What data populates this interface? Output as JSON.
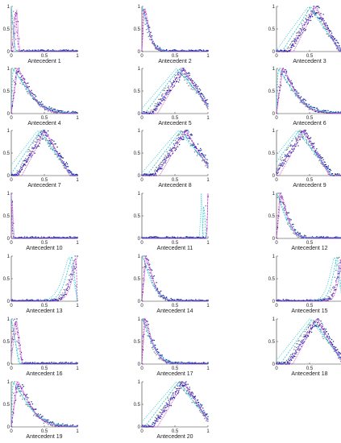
{
  "figure": {
    "colors": {
      "cyan": "#22c6d6",
      "magenta": "#c03ac8",
      "navy": "#1a1a8c",
      "blue": "#2050e0",
      "gray": "#7a7a7a",
      "axis": "#333333"
    },
    "x_ticks": [
      "0",
      "0.5",
      "1"
    ],
    "y_ticks": [
      "0",
      "0.5",
      "1"
    ]
  },
  "chart_data": [
    {
      "type": "line",
      "title": "Antecedent 1",
      "xlim": [
        0,
        1
      ],
      "ylim": [
        0,
        1
      ],
      "ylabel": "",
      "xlabel": "Antecedent 1",
      "shape": "spike",
      "peak": 0.06,
      "width": 0.05
    },
    {
      "type": "line",
      "title": "Antecedent 2",
      "xlim": [
        0,
        1
      ],
      "ylim": [
        0,
        1
      ],
      "xlabel": "Antecedent 2",
      "shape": "decay",
      "peak": 0.02,
      "width": 0.18
    },
    {
      "type": "line",
      "title": "Antecedent 3",
      "xlim": [
        0,
        1
      ],
      "ylim": [
        0,
        1
      ],
      "xlabel": "Antecedent 3",
      "shape": "tri",
      "peak": 0.58,
      "width": 0.38
    },
    {
      "type": "line",
      "title": "Antecedent 4",
      "xlim": [
        0,
        1
      ],
      "ylim": [
        0,
        1
      ],
      "xlabel": "Antecedent 4",
      "shape": "decay",
      "peak": 0.08,
      "width": 0.45
    },
    {
      "type": "line",
      "title": "Antecedent 5",
      "xlim": [
        0,
        1
      ],
      "ylim": [
        0,
        1
      ],
      "xlabel": "Antecedent 5",
      "shape": "broad",
      "peak": 0.62,
      "width": 0.45
    },
    {
      "type": "line",
      "title": "Antecedent 6",
      "xlim": [
        0,
        1
      ],
      "ylim": [
        0,
        1
      ],
      "xlabel": "Antecedent 6",
      "shape": "decay",
      "peak": 0.08,
      "width": 0.45
    },
    {
      "type": "line",
      "title": "Antecedent 7",
      "xlim": [
        0,
        1
      ],
      "ylim": [
        0,
        1
      ],
      "xlabel": "Antecedent 7",
      "shape": "broad",
      "peak": 0.5,
      "width": 0.4
    },
    {
      "type": "line",
      "title": "Antecedent 8",
      "xlim": [
        0,
        1
      ],
      "ylim": [
        0,
        1
      ],
      "xlabel": "Antecedent 8",
      "shape": "tri",
      "peak": 0.65,
      "width": 0.45
    },
    {
      "type": "line",
      "title": "Antecedent 9",
      "xlim": [
        0,
        1
      ],
      "ylim": [
        0,
        1
      ],
      "xlabel": "Antecedent 9",
      "shape": "broad",
      "peak": 0.4,
      "width": 0.42
    },
    {
      "type": "line",
      "title": "Antecedent 10",
      "xlim": [
        0,
        1
      ],
      "ylim": [
        0,
        1
      ],
      "xlabel": "Antecedent 10",
      "shape": "spike",
      "peak": 0.0,
      "width": 0.02
    },
    {
      "type": "line",
      "title": "Antecedent 11",
      "xlim": [
        0,
        1
      ],
      "ylim": [
        0,
        1
      ],
      "xlabel": "Antecedent 11",
      "shape": "spike",
      "peak": 1.0,
      "width": 0.02
    },
    {
      "type": "line",
      "title": "Antecedent 12",
      "xlim": [
        0,
        1
      ],
      "ylim": [
        0,
        1
      ],
      "xlabel": "Antecedent 12",
      "shape": "decay",
      "peak": 0.05,
      "width": 0.25
    },
    {
      "type": "line",
      "title": "Antecedent 13",
      "xlim": [
        0,
        1
      ],
      "ylim": [
        0,
        1
      ],
      "xlabel": "Antecedent 13",
      "shape": "rise",
      "peak": 0.98,
      "width": 0.2
    },
    {
      "type": "line",
      "title": "Antecedent 14",
      "xlim": [
        0,
        1
      ],
      "ylim": [
        0,
        1
      ],
      "xlabel": "Antecedent 14",
      "shape": "decay",
      "peak": 0.05,
      "width": 0.25
    },
    {
      "type": "line",
      "title": "Antecedent 15",
      "xlim": [
        0,
        1
      ],
      "ylim": [
        0,
        1
      ],
      "xlabel": "Antecedent 15",
      "shape": "rise",
      "peak": 0.98,
      "width": 0.15
    },
    {
      "type": "line",
      "title": "Antecedent 16",
      "xlim": [
        0,
        1
      ],
      "ylim": [
        0,
        1
      ],
      "xlabel": "Antecedent 16",
      "shape": "spike",
      "peak": 0.06,
      "width": 0.1
    },
    {
      "type": "line",
      "title": "Antecedent 17",
      "xlim": [
        0,
        1
      ],
      "ylim": [
        0,
        1
      ],
      "xlabel": "Antecedent 17",
      "shape": "decay",
      "peak": 0.03,
      "width": 0.28
    },
    {
      "type": "line",
      "title": "Antecedent 18",
      "xlim": [
        0,
        1
      ],
      "ylim": [
        0,
        1
      ],
      "xlabel": "Antecedent 18",
      "shape": "tri",
      "peak": 0.6,
      "width": 0.42
    },
    {
      "type": "line",
      "title": "Antecedent 19",
      "xlim": [
        0,
        1
      ],
      "ylim": [
        0,
        1
      ],
      "xlabel": "Antecedent 19",
      "shape": "decay",
      "peak": 0.08,
      "width": 0.45
    },
    {
      "type": "line",
      "title": "Antecedent 20",
      "xlim": [
        0,
        1
      ],
      "ylim": [
        0,
        1
      ],
      "xlabel": "Antecedent 20",
      "shape": "broad",
      "peak": 0.62,
      "width": 0.45
    }
  ]
}
